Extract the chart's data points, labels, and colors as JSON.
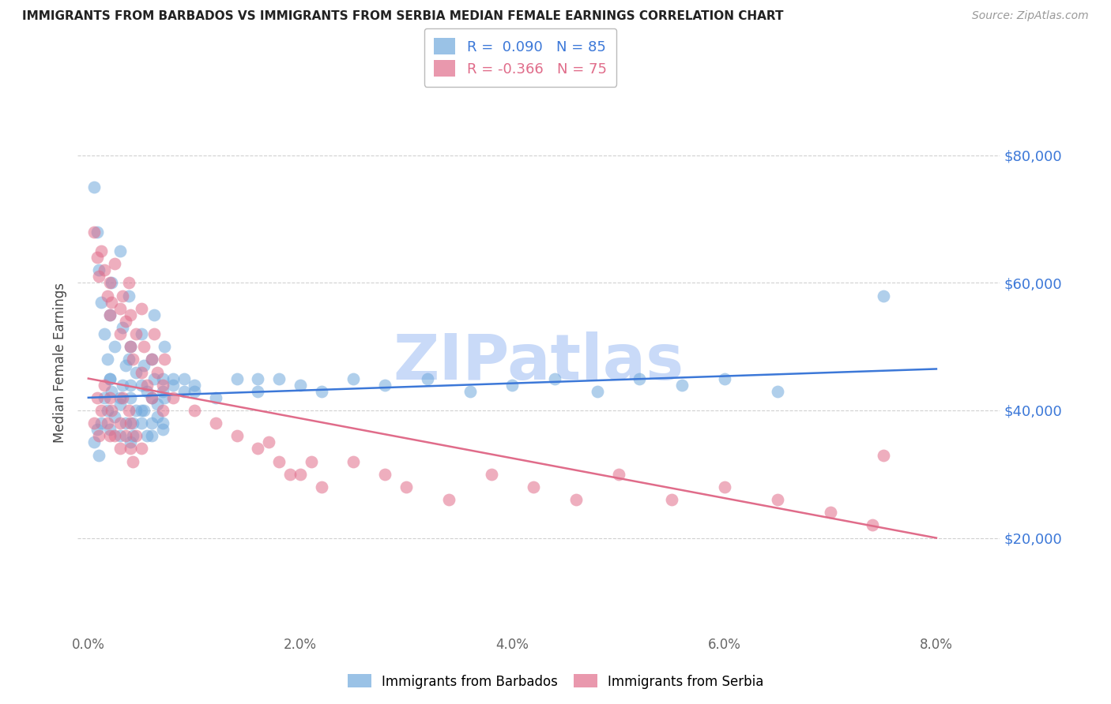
{
  "title": "IMMIGRANTS FROM BARBADOS VS IMMIGRANTS FROM SERBIA MEDIAN FEMALE EARNINGS CORRELATION CHART",
  "source": "Source: ZipAtlas.com",
  "ylabel": "Median Female Earnings",
  "xlabel_ticks": [
    "0.0%",
    "2.0%",
    "4.0%",
    "6.0%",
    "8.0%"
  ],
  "xlabel_values": [
    0.0,
    0.02,
    0.04,
    0.06,
    0.08
  ],
  "ytick_labels": [
    "$20,000",
    "$40,000",
    "$60,000",
    "$80,000"
  ],
  "ytick_values": [
    20000,
    40000,
    60000,
    80000
  ],
  "ylim": [
    5000,
    90000
  ],
  "xlim": [
    -0.001,
    0.086
  ],
  "legend_barbados_r": "0.090",
  "legend_barbados_n": "85",
  "legend_serbia_r": "-0.366",
  "legend_serbia_n": "75",
  "color_barbados": "#6fa8dc",
  "color_serbia": "#e06c8a",
  "color_barbados_line": "#3c78d8",
  "color_serbia_line": "#e06c8a",
  "color_yticklabels": "#3c78d8",
  "color_title": "#222222",
  "watermark": "ZIPatlas",
  "watermark_color": "#c9daf8",
  "background_color": "#ffffff",
  "grid_color": "#cccccc",
  "barbados_x": [
    0.0005,
    0.0008,
    0.001,
    0.0012,
    0.0015,
    0.0018,
    0.002,
    0.002,
    0.0022,
    0.0025,
    0.003,
    0.003,
    0.0032,
    0.0035,
    0.0038,
    0.004,
    0.004,
    0.0042,
    0.0045,
    0.005,
    0.005,
    0.0052,
    0.0055,
    0.006,
    0.006,
    0.0062,
    0.0065,
    0.007,
    0.007,
    0.0072,
    0.0005,
    0.0008,
    0.001,
    0.0012,
    0.0015,
    0.0018,
    0.002,
    0.002,
    0.0022,
    0.0025,
    0.003,
    0.003,
    0.0032,
    0.0035,
    0.0038,
    0.004,
    0.004,
    0.0042,
    0.0045,
    0.005,
    0.005,
    0.0052,
    0.0055,
    0.006,
    0.006,
    0.0062,
    0.0065,
    0.007,
    0.007,
    0.0072,
    0.008,
    0.009,
    0.01,
    0.012,
    0.014,
    0.016,
    0.018,
    0.02,
    0.022,
    0.025,
    0.028,
    0.032,
    0.036,
    0.04,
    0.044,
    0.048,
    0.052,
    0.056,
    0.06,
    0.065,
    0.008,
    0.009,
    0.01,
    0.016,
    0.075
  ],
  "barbados_y": [
    75000,
    68000,
    62000,
    57000,
    52000,
    48000,
    45000,
    55000,
    60000,
    50000,
    65000,
    42000,
    53000,
    47000,
    58000,
    44000,
    50000,
    38000,
    46000,
    52000,
    40000,
    47000,
    43000,
    48000,
    36000,
    55000,
    41000,
    45000,
    38000,
    50000,
    35000,
    37000,
    33000,
    38000,
    42000,
    40000,
    37000,
    45000,
    43000,
    39000,
    36000,
    41000,
    44000,
    38000,
    48000,
    35000,
    42000,
    36000,
    40000,
    38000,
    44000,
    40000,
    36000,
    42000,
    38000,
    45000,
    39000,
    43000,
    37000,
    42000,
    45000,
    43000,
    44000,
    42000,
    45000,
    43000,
    45000,
    44000,
    43000,
    45000,
    44000,
    45000,
    43000,
    44000,
    45000,
    43000,
    45000,
    44000,
    45000,
    43000,
    44000,
    45000,
    43000,
    45000,
    58000
  ],
  "serbia_x": [
    0.0005,
    0.0008,
    0.001,
    0.0012,
    0.0015,
    0.0018,
    0.002,
    0.002,
    0.0022,
    0.0025,
    0.003,
    0.003,
    0.0032,
    0.0035,
    0.0038,
    0.004,
    0.004,
    0.0042,
    0.0045,
    0.005,
    0.005,
    0.0052,
    0.0055,
    0.006,
    0.006,
    0.0062,
    0.0065,
    0.007,
    0.007,
    0.0072,
    0.0005,
    0.0008,
    0.001,
    0.0012,
    0.0015,
    0.0018,
    0.002,
    0.002,
    0.0022,
    0.0025,
    0.003,
    0.003,
    0.0032,
    0.0035,
    0.0038,
    0.004,
    0.004,
    0.0042,
    0.0045,
    0.005,
    0.008,
    0.01,
    0.012,
    0.014,
    0.016,
    0.018,
    0.02,
    0.022,
    0.025,
    0.028,
    0.03,
    0.034,
    0.038,
    0.042,
    0.046,
    0.05,
    0.055,
    0.06,
    0.065,
    0.07,
    0.074,
    0.021,
    0.019,
    0.017,
    0.075
  ],
  "serbia_y": [
    68000,
    64000,
    61000,
    65000,
    62000,
    58000,
    55000,
    60000,
    57000,
    63000,
    56000,
    52000,
    58000,
    54000,
    60000,
    50000,
    55000,
    48000,
    52000,
    56000,
    46000,
    50000,
    44000,
    48000,
    42000,
    52000,
    46000,
    44000,
    40000,
    48000,
    38000,
    42000,
    36000,
    40000,
    44000,
    38000,
    36000,
    42000,
    40000,
    36000,
    34000,
    38000,
    42000,
    36000,
    40000,
    34000,
    38000,
    32000,
    36000,
    34000,
    42000,
    40000,
    38000,
    36000,
    34000,
    32000,
    30000,
    28000,
    32000,
    30000,
    28000,
    26000,
    30000,
    28000,
    26000,
    30000,
    26000,
    28000,
    26000,
    24000,
    22000,
    32000,
    30000,
    35000,
    33000
  ]
}
